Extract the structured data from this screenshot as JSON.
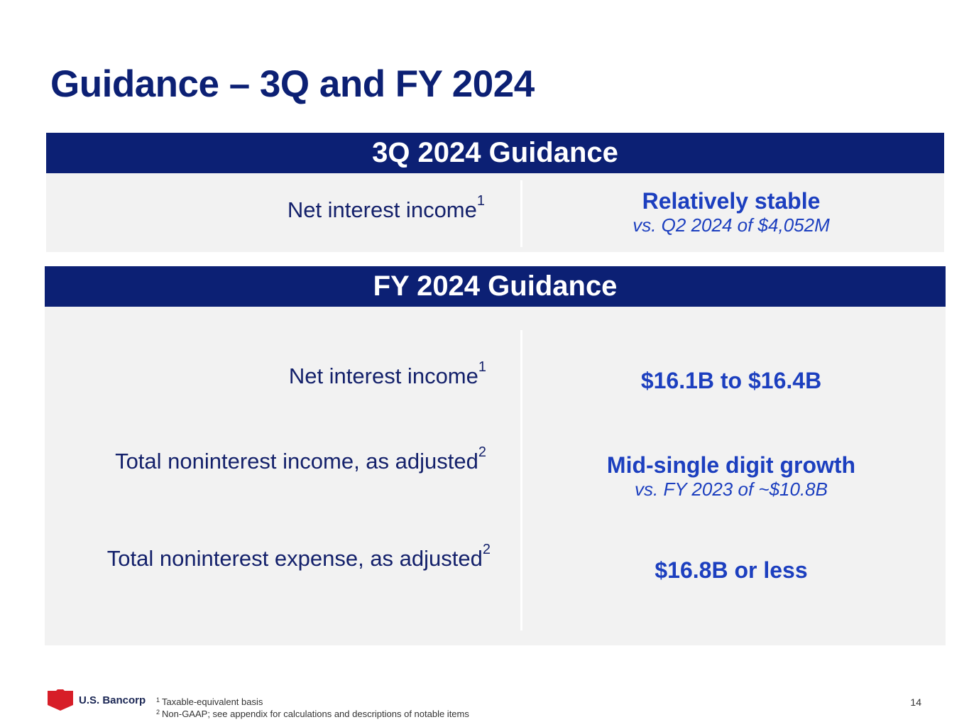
{
  "slide": {
    "title": "Guidance – 3Q and FY 2024",
    "page_number": "14"
  },
  "q3_section": {
    "header": "3Q 2024 Guidance",
    "rows": [
      {
        "label": "Net interest income",
        "label_footnote": "1",
        "value": "Relatively stable",
        "value_detail": "vs. Q2 2024 of $4,052M"
      }
    ]
  },
  "fy_section": {
    "header": "FY 2024 Guidance",
    "rows": [
      {
        "label": "Net interest income",
        "label_footnote": "1",
        "value": "$16.1B to $16.4B",
        "value_detail": ""
      },
      {
        "label": "Total noninterest income, as adjusted",
        "label_footnote": "2",
        "value": "Mid-single digit growth",
        "value_detail": "vs. FY 2023 of ~$10.8B"
      },
      {
        "label": "Total noninterest expense, as adjusted",
        "label_footnote": "2",
        "value": "$16.8B or less",
        "value_detail": ""
      }
    ]
  },
  "footer": {
    "logo_text": "U.S. Bancorp",
    "footnotes": [
      {
        "marker": "1",
        "text": "Taxable-equivalent basis"
      },
      {
        "marker": "2",
        "text": "Non-GAAP; see appendix for calculations and descriptions of notable items"
      }
    ]
  },
  "colors": {
    "navy": "#0c2074",
    "accent_blue": "#1c3fbf",
    "panel_gray": "#f2f2f2",
    "logo_red": "#d71e28"
  }
}
